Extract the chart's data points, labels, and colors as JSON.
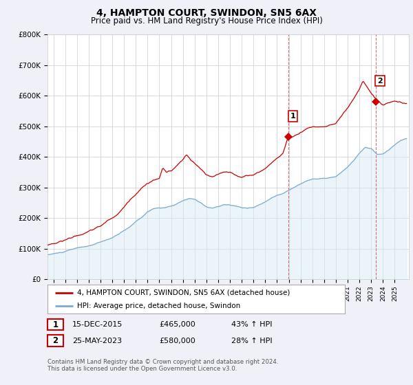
{
  "title": "4, HAMPTON COURT, SWINDON, SN5 6AX",
  "subtitle": "Price paid vs. HM Land Registry's House Price Index (HPI)",
  "ylim": [
    0,
    800000
  ],
  "yticks": [
    0,
    100000,
    200000,
    300000,
    400000,
    500000,
    600000,
    700000,
    800000
  ],
  "ytick_labels": [
    "£0",
    "£100K",
    "£200K",
    "£300K",
    "£400K",
    "£500K",
    "£600K",
    "£700K",
    "£800K"
  ],
  "xlim_start": 1995.5,
  "xlim_end": 2026.2,
  "sale1_x": 2015.96,
  "sale1_y": 465000,
  "sale1_label": "15-DEC-2015",
  "sale1_price": "£465,000",
  "sale1_hpi": "43% ↑ HPI",
  "sale2_x": 2023.37,
  "sale2_y": 580000,
  "sale2_label": "25-MAY-2023",
  "sale2_price": "£580,000",
  "sale2_hpi": "28% ↑ HPI",
  "red_line_color": "#cc0000",
  "blue_line_color": "#7aabcf",
  "shade_color": "#d8eaf5",
  "dashed_line_color": "#cc3333",
  "legend_label_red": "4, HAMPTON COURT, SWINDON, SN5 6AX (detached house)",
  "legend_label_blue": "HPI: Average price, detached house, Swindon",
  "footer": "Contains HM Land Registry data © Crown copyright and database right 2024.\nThis data is licensed under the Open Government Licence v3.0.",
  "background_color": "#f0f0f8",
  "plot_bg_color": "#ffffff",
  "title_fontsize": 10,
  "subtitle_fontsize": 8.5
}
